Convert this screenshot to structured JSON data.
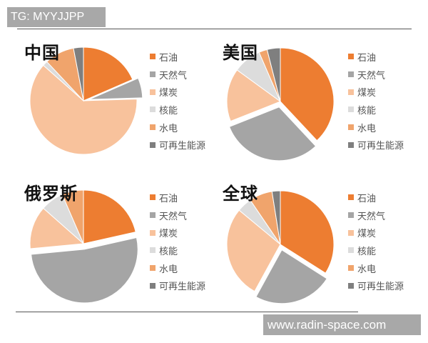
{
  "header": {
    "tag": "TG: MYYJJPP"
  },
  "footer": {
    "watermark": "www.radin-space.com"
  },
  "legend": {
    "items": [
      {
        "label": "石油",
        "color": "#ed7d31"
      },
      {
        "label": "天然气",
        "color": "#a5a5a5"
      },
      {
        "label": "煤炭",
        "color": "#f8c29c"
      },
      {
        "label": "核能",
        "color": "#dcdcdc"
      },
      {
        "label": "水电",
        "color": "#f0a46c"
      },
      {
        "label": "可再生能源",
        "color": "#7f7f7f"
      }
    ]
  },
  "chart_data": [
    {
      "type": "pie",
      "title": "中国",
      "categories": [
        "石油",
        "天然气",
        "煤炭",
        "核能",
        "水电",
        "可再生能源"
      ],
      "values": [
        18.5,
        6,
        62,
        1.5,
        9,
        3
      ],
      "exploded": "天然气",
      "legend_position": "right",
      "start_angle": "12 o'clock, clockwise"
    },
    {
      "type": "pie",
      "title": "美国",
      "categories": [
        "石油",
        "天然气",
        "煤炭",
        "核能",
        "水电",
        "可再生能源"
      ],
      "values": [
        38,
        31,
        16,
        8.5,
        2.5,
        4
      ],
      "exploded": "天然气",
      "legend_position": "right",
      "start_angle": "12 o'clock, clockwise"
    },
    {
      "type": "pie",
      "title": "俄罗斯",
      "categories": [
        "石油",
        "天然气",
        "煤炭",
        "核能",
        "水电",
        "可再生能源"
      ],
      "values": [
        21.5,
        52,
        13,
        7,
        6.5,
        0
      ],
      "exploded": "天然气",
      "legend_position": "right",
      "start_angle": "12 o'clock, clockwise"
    },
    {
      "type": "pie",
      "title": "全球",
      "categories": [
        "石油",
        "天然气",
        "煤炭",
        "核能",
        "水电",
        "可再生能源"
      ],
      "values": [
        34,
        24,
        28,
        4.5,
        7,
        2.5
      ],
      "exploded": "天然气",
      "legend_position": "right",
      "start_angle": "12 o'clock, clockwise"
    }
  ],
  "panels": [
    {
      "title": "中国"
    },
    {
      "title": "美国"
    },
    {
      "title": "俄罗斯"
    },
    {
      "title": "全球"
    }
  ]
}
